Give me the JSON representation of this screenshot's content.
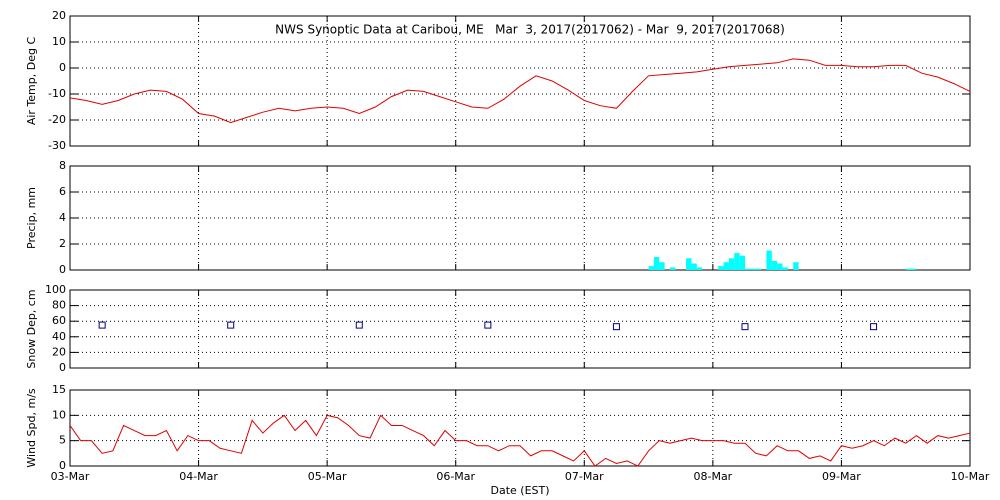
{
  "chart_data": [
    {
      "type": "line",
      "title": "NWS Synoptic Data at Caribou, ME   Mar  3, 2017(2017062) - Mar  9, 2017(2017068)",
      "ylabel": "Air Temp, Deg C",
      "color": "#e00000",
      "grid": true,
      "ylim": [
        -30,
        20
      ],
      "yticks": [
        -30,
        -20,
        -10,
        0,
        10,
        20
      ],
      "x": [
        0,
        3,
        6,
        9,
        12,
        15,
        18,
        21,
        24,
        27,
        30,
        33,
        36,
        39,
        42,
        45,
        48,
        51,
        54,
        57,
        60,
        63,
        66,
        69,
        72,
        75,
        78,
        81,
        84,
        87,
        90,
        93,
        96,
        99,
        102,
        105,
        108,
        111,
        114,
        117,
        120,
        123,
        126,
        129,
        132,
        135,
        138,
        141,
        144,
        147,
        150,
        153,
        156,
        159,
        162,
        165,
        168
      ],
      "values": [
        -11.5,
        -12.5,
        -14,
        -12.5,
        -10,
        -8.5,
        -9,
        -12,
        -17.5,
        -18.5,
        -21,
        -19,
        -17,
        -15.5,
        -16.5,
        -15.5,
        -15,
        -15.5,
        -17.5,
        -15,
        -11,
        -8.5,
        -9,
        -11,
        -13,
        -15,
        -15.5,
        -12,
        -7,
        -3,
        -5,
        -8.5,
        -12.5,
        -14.5,
        -15.5,
        -9,
        -3,
        -2.5,
        -2,
        -1.5,
        -0.5,
        0.5,
        1,
        1.5,
        2,
        3.5,
        3,
        1,
        1,
        0.5,
        0.5,
        1,
        1,
        -2,
        -3.5,
        -6,
        -9
      ]
    },
    {
      "type": "bar",
      "ylabel": "Precip, mm",
      "color": "#00ffff",
      "grid": true,
      "ylim": [
        0,
        8
      ],
      "yticks": [
        0,
        2,
        4,
        6,
        8
      ],
      "x": [
        108,
        109,
        110,
        112,
        115,
        116,
        117,
        121,
        122,
        123,
        124,
        125,
        126,
        127,
        128,
        130,
        131,
        132,
        133,
        135,
        156,
        157
      ],
      "values": [
        0.3,
        1.0,
        0.6,
        0.2,
        0.9,
        0.5,
        0.2,
        0.3,
        0.6,
        0.9,
        1.3,
        1.1,
        0.1,
        0.1,
        0.1,
        1.5,
        0.7,
        0.5,
        0.2,
        0.6,
        0.1,
        0.1
      ]
    },
    {
      "type": "scatter",
      "ylabel": "Snow Dep, cm",
      "color": "#000080",
      "grid": true,
      "ylim": [
        0,
        100
      ],
      "yticks": [
        0,
        20,
        40,
        60,
        80,
        100
      ],
      "x": [
        6,
        30,
        54,
        78,
        102,
        126,
        150
      ],
      "values": [
        55,
        55,
        55,
        55,
        53,
        53,
        53
      ]
    },
    {
      "type": "line",
      "ylabel": "Wind Spd, m/s",
      "xlabel": "Date (EST)",
      "color": "#e00000",
      "grid": true,
      "ylim": [
        0,
        15
      ],
      "yticks": [
        0,
        5,
        10,
        15
      ],
      "xlim": [
        0,
        168
      ],
      "xticks": [
        {
          "value": 0,
          "label": "03-Mar"
        },
        {
          "value": 24,
          "label": "04-Mar"
        },
        {
          "value": 48,
          "label": "05-Mar"
        },
        {
          "value": 72,
          "label": "06-Mar"
        },
        {
          "value": 96,
          "label": "07-Mar"
        },
        {
          "value": 120,
          "label": "08-Mar"
        },
        {
          "value": 144,
          "label": "09-Mar"
        },
        {
          "value": 168,
          "label": "10-Mar"
        }
      ],
      "x": [
        0,
        2,
        4,
        6,
        8,
        10,
        12,
        14,
        16,
        18,
        20,
        22,
        24,
        26,
        28,
        30,
        32,
        34,
        36,
        38,
        40,
        42,
        44,
        46,
        48,
        50,
        52,
        54,
        56,
        58,
        60,
        62,
        64,
        66,
        68,
        70,
        72,
        74,
        76,
        78,
        80,
        82,
        84,
        86,
        88,
        90,
        92,
        94,
        96,
        98,
        100,
        102,
        104,
        106,
        108,
        110,
        112,
        114,
        116,
        118,
        120,
        122,
        124,
        126,
        128,
        130,
        132,
        134,
        136,
        138,
        140,
        142,
        144,
        146,
        148,
        150,
        152,
        154,
        156,
        158,
        160,
        162,
        164,
        166,
        168
      ],
      "values": [
        8,
        5,
        5,
        2.5,
        3,
        8,
        7,
        6,
        6,
        7,
        3,
        6,
        5,
        5,
        3.5,
        3,
        2.5,
        9,
        6.5,
        8.5,
        10,
        7,
        9,
        6,
        10,
        9.5,
        8,
        6,
        5.5,
        10,
        8,
        8,
        7,
        6,
        4,
        7,
        5,
        5,
        4,
        4,
        3,
        4,
        4,
        2,
        3,
        3,
        2,
        1,
        3,
        0,
        1.5,
        0.5,
        1,
        0,
        3,
        5,
        4.5,
        5,
        5.5,
        5,
        5,
        5,
        4.5,
        4.5,
        2.5,
        2,
        4,
        3,
        3,
        1.5,
        2,
        1,
        4,
        3.5,
        4,
        5,
        4,
        5.5,
        4.5,
        6,
        4.5,
        6,
        5.5,
        6,
        6.5
      ]
    }
  ]
}
